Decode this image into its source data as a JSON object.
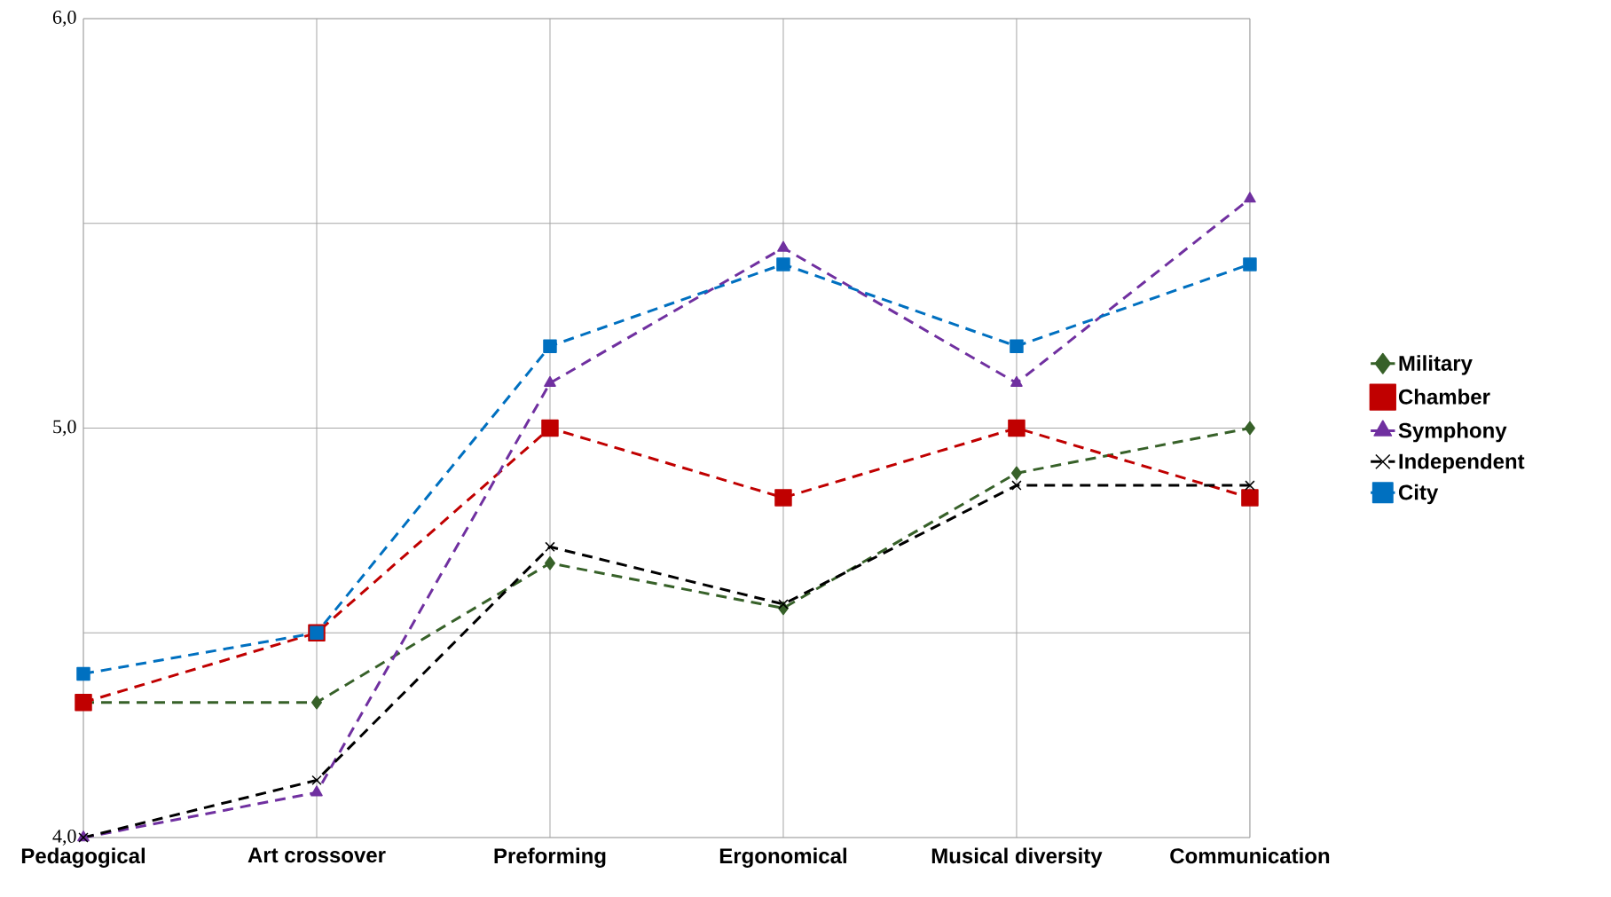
{
  "chart_data": {
    "type": "line",
    "categories": [
      "Pedagogical",
      "Art crossover",
      "Preforming",
      "Ergonomical",
      "Musical diversity",
      "Communication"
    ],
    "series": [
      {
        "name": "Military",
        "color": "#376129",
        "marker": "diamond",
        "values": [
          4.33,
          4.33,
          4.67,
          4.56,
          4.89,
          5.0
        ]
      },
      {
        "name": "Chamber",
        "color": "#c00000",
        "marker": "square",
        "values": [
          4.33,
          4.5,
          5.0,
          4.83,
          5.0,
          4.83
        ]
      },
      {
        "name": "Symphony",
        "color": "#7030a0",
        "marker": "triangle",
        "values": [
          4.0,
          4.11,
          5.11,
          5.44,
          5.11,
          5.56
        ]
      },
      {
        "name": "Independent",
        "color": "#000000",
        "marker": "cross",
        "values": [
          4.0,
          4.14,
          4.71,
          4.57,
          4.86,
          4.86
        ]
      },
      {
        "name": "City",
        "color": "#0070c0",
        "marker": "square",
        "values": [
          4.4,
          4.5,
          5.2,
          5.4,
          5.2,
          5.4
        ]
      }
    ],
    "ylim": [
      4.0,
      6.0
    ],
    "yticks": [
      {
        "value": 4.0,
        "label": "4,0"
      },
      {
        "value": 4.5,
        "label": null
      },
      {
        "value": 5.0,
        "label": "5,0"
      },
      {
        "value": 5.5,
        "label": null
      },
      {
        "value": 6.0,
        "label": "6,0"
      }
    ],
    "grid": true,
    "legend": "right",
    "line_style": "dashed"
  }
}
